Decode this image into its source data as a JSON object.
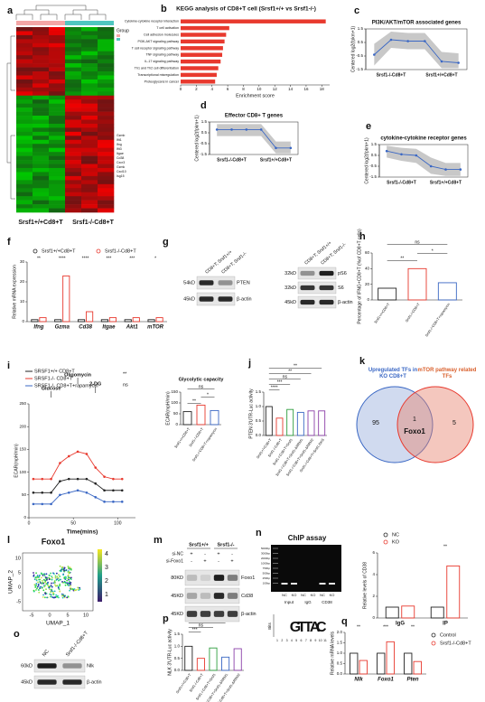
{
  "panel_letters": [
    "a",
    "b",
    "c",
    "d",
    "e",
    "f",
    "g",
    "h",
    "i",
    "j",
    "k",
    "l",
    "m",
    "n",
    "o",
    "p",
    "q"
  ],
  "heatmap": {
    "legend_title": "Group",
    "groups": [
      "Srsf1+/+Cd8+T",
      "Srsf1-/-Cd8+T"
    ],
    "genes": [
      "Gzmb",
      "Ifit1",
      "Ifng",
      "Ifit3",
      "Itgae",
      "Cd38",
      "Cxcr3",
      "Gzmk",
      "Cxcl10",
      "Isg15"
    ]
  },
  "chart_data": [
    {
      "type": "hbar",
      "title": "KEGG analysis of CD8+T cell (Srsf1+/+ vs Srsf1-/-)",
      "xlabel": "Enrichment score",
      "categories": [
        "Cytokine-cytokine receptor interaction",
        "T cell activation",
        "Cell adhesion molecules",
        "PI3K-AKT signaling pathway",
        "T cell receptor signaling pathway",
        "TNF signaling pathway",
        "IL-17 signaling pathway",
        "Th1 and Th2 cell differentiation",
        "Transcriptional misregulation",
        "Proteoglycans in cancer"
      ],
      "values": [
        18.5,
        6.2,
        5.8,
        5.6,
        5.4,
        5.3,
        5.1,
        4.8,
        4.6,
        4.4
      ],
      "color": "#e8392e",
      "xlim": [
        0,
        19
      ],
      "xticks": [
        0,
        2,
        4,
        6,
        8,
        10,
        12,
        14,
        16,
        18
      ]
    },
    {
      "type": "line",
      "title": "PI3K/AKT/mTOR associated genes",
      "ylabel": "Centered log2(fpkm+1)",
      "categories": [
        null,
        "Srsf1-/-Cd8+T",
        null,
        null,
        "Srsf1+/+Cd8+T",
        null
      ],
      "values": [
        -0.4,
        0.7,
        0.6,
        0.6,
        -0.9,
        -1.0
      ],
      "upper": [
        0.4,
        1.3,
        1.2,
        1.2,
        -0.2,
        -0.3
      ],
      "lower": [
        -1.2,
        0.1,
        0.0,
        0.0,
        -1.4,
        -1.4
      ],
      "color": "#3a67c4",
      "band_color": "#c8c8c8",
      "ylim": [
        -1.5,
        1.5
      ],
      "yticks": [
        -1.5,
        -0.5,
        0.5,
        1.5
      ]
    },
    {
      "type": "line",
      "title": "Effector CD8+ T genes",
      "ylabel": "Centered log2(fpkm+1)",
      "categories": [
        null,
        "Srsf1-/-Cd8+T",
        null,
        null,
        "Srsf1+/+Cd8+T",
        null
      ],
      "values": [
        0.8,
        0.8,
        0.8,
        0.8,
        -0.9,
        -0.9
      ],
      "upper": [
        1.3,
        1.3,
        1.3,
        1.3,
        -0.3,
        -0.3
      ],
      "lower": [
        0.2,
        0.2,
        0.2,
        0.2,
        -1.4,
        -1.4
      ],
      "color": "#3a67c4",
      "band_color": "#c8c8c8",
      "ylim": [
        -1.5,
        1.5
      ],
      "yticks": [
        -1.5,
        -0.5,
        0.5,
        1.5
      ]
    },
    {
      "type": "line",
      "title": "cytokine-cytokine receptor genes",
      "ylabel": "Centered log2(fpkm+1)",
      "categories": [
        null,
        "Srsf1-/-Cd8+T",
        null,
        null,
        "Srsf1+/+Cd8+T",
        null
      ],
      "values": [
        0.9,
        0.6,
        0.5,
        -0.5,
        -0.8,
        -0.8
      ],
      "upper": [
        1.4,
        1.2,
        1.1,
        0.3,
        -0.2,
        -0.2
      ],
      "lower": [
        0.3,
        0.0,
        -0.2,
        -1.2,
        -1.4,
        -1.4
      ],
      "color": "#3a67c4",
      "band_color": "#c8c8c8",
      "ylim": [
        -1.5,
        1.5
      ],
      "yticks": [
        -1.5,
        -0.5,
        0.5,
        1.5
      ]
    },
    {
      "type": "bar",
      "ylabel": "Relative mRNA expression",
      "categories": [
        "Ifng",
        "Gzma",
        "Cd38",
        "Itgae",
        "Akt1",
        "mTOR"
      ],
      "series": [
        {
          "name": "Srsf1+/+Cd8+T",
          "color": "#222222",
          "values": [
            1,
            1,
            1,
            1,
            1,
            1
          ]
        },
        {
          "name": "Srsf1-/-Cd8+T",
          "color": "#e8392e",
          "values": [
            2,
            23,
            5,
            2,
            2,
            2
          ]
        }
      ],
      "ylim": [
        0,
        30
      ],
      "yticks": [
        0,
        10,
        20,
        30
      ],
      "annotations": [
        "**",
        "****",
        "****",
        "***",
        "***",
        "*"
      ]
    },
    {
      "type": "bar",
      "ylabel": "Percentage of IFNG+CD8+T (%of CD8+T cells)",
      "categories": [
        "Srsf1+/+CD8+T",
        "Srsf1-/-CD8+T",
        "Srsf1-/-CD8+T+rapamycin"
      ],
      "values": [
        15,
        40,
        22
      ],
      "colors": [
        "#222222",
        "#e8392e",
        "#3a67c4"
      ],
      "ylim": [
        0,
        60
      ],
      "yticks": [
        0,
        20,
        40,
        60
      ],
      "annotations": [
        "**",
        "*",
        "ns"
      ]
    },
    {
      "type": "line",
      "xlabel": "Time(mins)",
      "ylabel": "ECAR(mpH/min)",
      "events": [
        "Glucose",
        "Oligomycin",
        "2-DG"
      ],
      "x": [
        5,
        15,
        25,
        35,
        45,
        55,
        65,
        75,
        85,
        95,
        105
      ],
      "series": [
        {
          "name": "SRSF1+/+ CD8+T",
          "color": "#222222",
          "values": [
            55,
            55,
            55,
            80,
            85,
            85,
            85,
            75,
            60,
            60,
            60
          ]
        },
        {
          "name": "SRSF1-/- CD8+T",
          "color": "#e8392e",
          "values": [
            85,
            85,
            85,
            120,
            135,
            145,
            140,
            110,
            90,
            85,
            85
          ]
        },
        {
          "name": "SRSF1-/- CD8+T+rapamycin",
          "color": "#3a67c4",
          "values": [
            30,
            30,
            30,
            50,
            55,
            60,
            55,
            45,
            35,
            35,
            35
          ]
        }
      ],
      "xlim": [
        0,
        120
      ],
      "xticks": [
        0,
        50,
        100
      ],
      "ylim": [
        0,
        250
      ],
      "yticks": [
        0,
        50,
        100,
        150,
        200,
        250
      ],
      "annotations": [
        "**",
        "ns"
      ]
    },
    {
      "type": "bar",
      "title": "Glycolytic capacity",
      "ylabel": "ECAR(mpH/min)",
      "categories": [
        "Srsf1+/+CD8+T",
        "Srsf1-/-CD8+T",
        "Srsf1-/-CD8+T+rapamycin"
      ],
      "values": [
        60,
        90,
        65
      ],
      "colors": [
        "#222222",
        "#e8392e",
        "#3a67c4"
      ],
      "ylim": [
        0,
        150
      ],
      "yticks": [
        0,
        50,
        100,
        150
      ],
      "annotations": [
        "**",
        "*",
        "ns"
      ]
    },
    {
      "type": "bar",
      "ylabel": "PTEN 3'UTR-Luc activity",
      "categories": [
        "Srsf1+/+Cd8+T",
        "Srsf1-/-Cd8+T",
        "Srsf1-/-Cd8+T+Srsf1",
        "Srsf1-/-Cd8+T+Srsf1-ΔRRM1",
        "Srsf1-/-Cd8+T+Srsf1-ΔRRM2",
        "Srsf1-/-Cd8+T+Srsf1-DKS"
      ],
      "values": [
        1.0,
        0.6,
        0.9,
        0.8,
        0.85,
        0.85
      ],
      "colors": [
        "#222222",
        "#e8392e",
        "#2e9e3e",
        "#3a67c4",
        "#8b3fa8",
        "#8b3fa8"
      ],
      "ylim": [
        0,
        1.5
      ],
      "yticks": [
        {
          "value": 0,
          "label": "0.0"
        },
        0.5,
        {
          "value": 1,
          "label": "1.0"
        },
        1.5
      ],
      "annotations": [
        "****",
        "***",
        "ns",
        "**",
        "**"
      ]
    },
    {
      "type": "bar",
      "ylabel": "Relative levels of CD38",
      "categories": [
        "IgG",
        "IP"
      ],
      "series": [
        {
          "name": "NC",
          "color": "#222222",
          "values": [
            1,
            1
          ]
        },
        {
          "name": "KO",
          "color": "#e8392e",
          "values": [
            1.1,
            4.8
          ]
        }
      ],
      "ylim": [
        0,
        6
      ],
      "yticks": [
        0,
        2,
        4,
        6
      ],
      "annotations": [
        "**"
      ]
    },
    {
      "type": "bar",
      "ylabel": "NLK 3'UTR-Luc activity",
      "categories": [
        "Srsf1+/+Cd8+T",
        "Srsf1-/-Cd8+T",
        "Srsf1-/-Cd8+T+Srsf1",
        "Srsf1-/-Cd8+T+Srsf1-ΔRRM1",
        "Srsf1-/-Cd8+T+Srsf1-ΔRRM2"
      ],
      "values": [
        1.0,
        0.5,
        0.93,
        0.55,
        0.9
      ],
      "colors": [
        "#222222",
        "#e8392e",
        "#2e9e3e",
        "#3a67c4",
        "#8b3fa8"
      ],
      "ylim": [
        0,
        1.5
      ],
      "yticks": [
        {
          "value": 0,
          "label": "0.0"
        },
        0.5,
        {
          "value": 1,
          "label": "1.0"
        },
        1.5
      ],
      "annotations": [
        "***",
        "ns",
        "***",
        "**"
      ]
    },
    {
      "type": "bar",
      "ylabel": "Relative mRNA levels",
      "categories": [
        "Nlk",
        "Foxo1",
        "Pten"
      ],
      "series": [
        {
          "name": "Control",
          "color": "#222222",
          "values": [
            1,
            1,
            1
          ]
        },
        {
          "name": "Srsf1-/-Cd8+T",
          "color": "#e8392e",
          "values": [
            0.65,
            1.55,
            0.6
          ]
        }
      ],
      "ylim": [
        0,
        2
      ],
      "yticks": [
        {
          "value": 0,
          "label": "0.0"
        },
        0.5,
        {
          "value": 1,
          "label": "1.0"
        },
        1.5,
        {
          "value": 2,
          "label": "2.0"
        }
      ],
      "annotations": [
        "**",
        "***",
        "**"
      ]
    }
  ],
  "blots": {
    "g_left": {
      "lanes": [
        "CD8+T; Srsf1+/+",
        "CD8+T; Srsf1-/-"
      ],
      "bands": [
        {
          "kd": "54kD",
          "label": "PTEN"
        },
        {
          "kd": "45kD",
          "label": "β-actin"
        }
      ]
    },
    "g_right": {
      "lanes": [
        "CD8+T; Srsf1+/+",
        "CD8+T; Srsf1-/-"
      ],
      "bands": [
        {
          "kd": "32kD",
          "label": "pS6"
        },
        {
          "kd": "32kD",
          "label": "S6"
        },
        {
          "kd": "45kD",
          "label": "β-actin"
        }
      ]
    },
    "m": {
      "groups": [
        "Srsf1+/+",
        "Srsf1-/-"
      ],
      "rows": [
        {
          "name": "si-NC",
          "marks": [
            "+",
            "-",
            "+",
            "-"
          ]
        },
        {
          "name": "si-Foxo1",
          "marks": [
            "-",
            "+",
            "-",
            "+"
          ]
        }
      ],
      "bands": [
        {
          "kd": "80KD",
          "label": "Foxo1"
        },
        {
          "kd": "45KD",
          "label": "Cd38"
        },
        {
          "kd": "45KD",
          "label": "β-actin"
        }
      ]
    },
    "o": {
      "lanes": [
        "NC",
        "Srsf1-/-Cd8+T"
      ],
      "bands": [
        {
          "kd": "60kD",
          "label": "Nlk"
        },
        {
          "kd": "45kD",
          "label": "β-actin"
        }
      ]
    }
  },
  "venn": {
    "left_label": "Upregulated TFs in KO CD8+T",
    "right_label": "mTOR pathway related TFs",
    "left_only": "95",
    "both": "1",
    "right_only": "5",
    "center_name": "Foxo1"
  },
  "umap": {
    "title": "Foxo1",
    "xlabel": "UMAP_1",
    "ylabel": "UMAP_2",
    "xticks": [
      "-5",
      "0",
      "5",
      "10"
    ],
    "yticks": [
      "-5",
      "0",
      "5",
      "10"
    ],
    "colorbar_ticks": [
      "1",
      "2",
      "3",
      "4"
    ]
  },
  "chip": {
    "title": "ChIP assay",
    "ladder": [
      "5000bp",
      "3000bp",
      "2000bp",
      "1000bp",
      "750bp",
      "500bp",
      "250bp",
      "100bp"
    ],
    "lanes": [
      "NC",
      "KO",
      "NC",
      "KO",
      "NC",
      "KO"
    ],
    "groups": [
      "Input",
      "IgG",
      "CD38"
    ],
    "logo_ylabel": "Bits",
    "logo_letters": [
      "G",
      "T",
      "T",
      "A",
      "C"
    ],
    "logo_positions": [
      "1",
      "2",
      "3",
      "4",
      "5",
      "6",
      "7",
      "8",
      "9",
      "10",
      "11"
    ]
  }
}
